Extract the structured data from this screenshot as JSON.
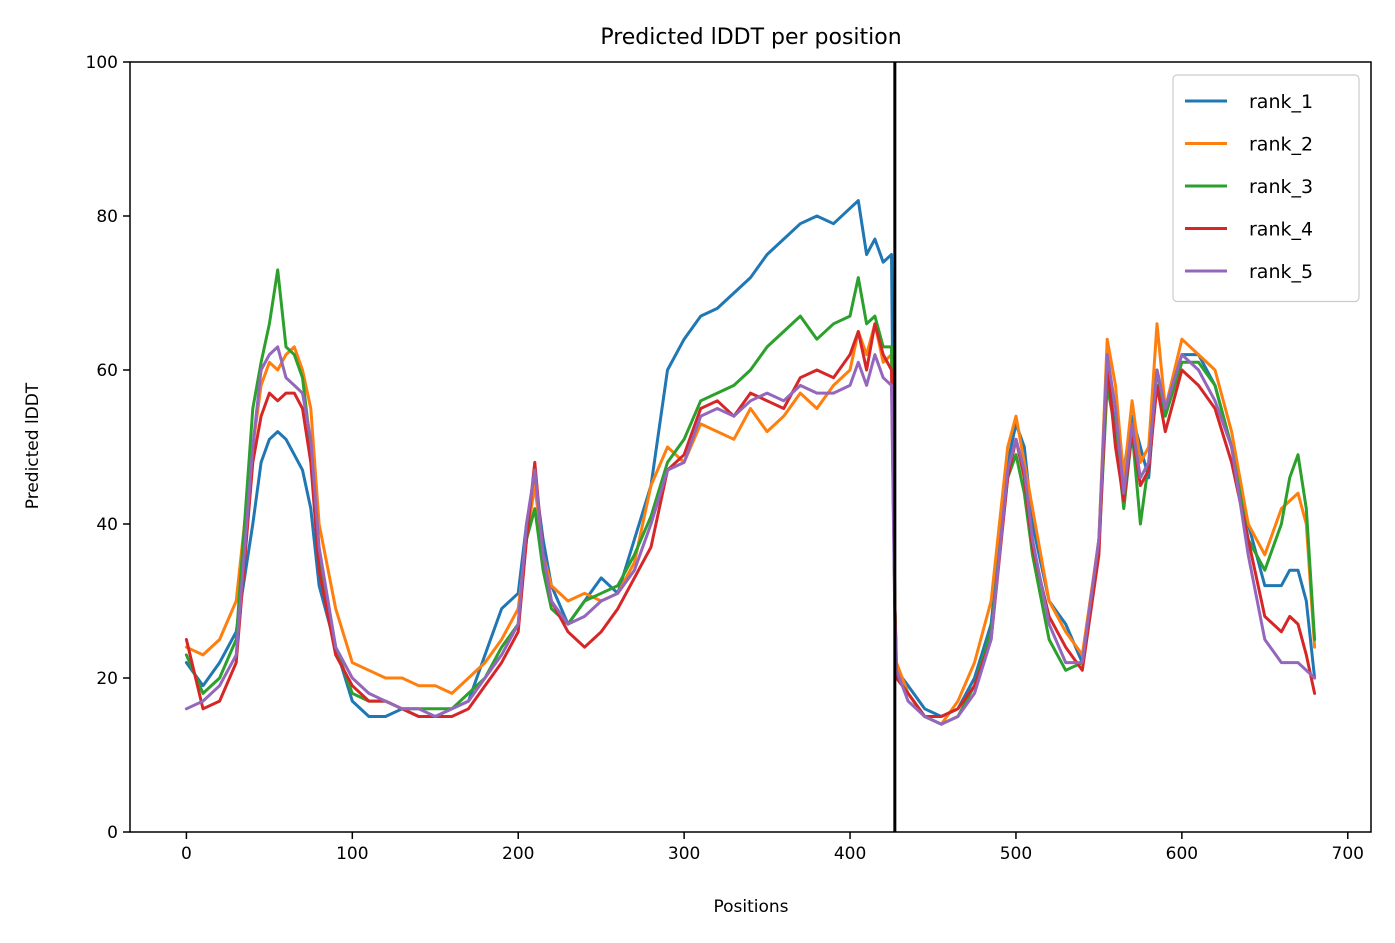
{
  "chart_data": {
    "type": "line",
    "title": "Predicted lDDT per position",
    "xlabel": "Positions",
    "ylabel": "Predicted lDDT",
    "xlim": [
      -34,
      714
    ],
    "ylim": [
      0,
      100
    ],
    "xticks": [
      0,
      100,
      200,
      300,
      400,
      500,
      600,
      700
    ],
    "yticks": [
      0,
      20,
      40,
      60,
      80,
      100
    ],
    "xtick_labels": [
      "0",
      "100",
      "200",
      "300",
      "400",
      "500",
      "600",
      "700"
    ],
    "ytick_labels": [
      "0",
      "20",
      "40",
      "60",
      "80",
      "100"
    ],
    "vline_x": 427,
    "grid": false,
    "legend_position": "top-right",
    "x": [
      0,
      10,
      20,
      30,
      40,
      45,
      50,
      55,
      60,
      65,
      70,
      75,
      80,
      90,
      100,
      110,
      120,
      130,
      140,
      150,
      160,
      170,
      180,
      190,
      200,
      205,
      210,
      215,
      220,
      230,
      240,
      250,
      260,
      270,
      280,
      290,
      300,
      310,
      320,
      330,
      340,
      350,
      360,
      370,
      380,
      390,
      400,
      405,
      410,
      415,
      420,
      425,
      427,
      428,
      435,
      445,
      455,
      465,
      475,
      485,
      495,
      500,
      505,
      510,
      520,
      530,
      540,
      550,
      555,
      560,
      565,
      570,
      575,
      580,
      585,
      590,
      600,
      610,
      620,
      630,
      640,
      650,
      660,
      665,
      670,
      675,
      680
    ],
    "series": [
      {
        "name": "rank_1",
        "color": "#1f77b4",
        "values": [
          22,
          19,
          22,
          26,
          40,
          48,
          51,
          52,
          51,
          49,
          47,
          42,
          32,
          24,
          17,
          15,
          15,
          16,
          15,
          15,
          16,
          17,
          23,
          29,
          31,
          40,
          46,
          38,
          32,
          27,
          30,
          33,
          31,
          38,
          45,
          60,
          64,
          67,
          68,
          70,
          72,
          75,
          77,
          79,
          80,
          79,
          81,
          82,
          75,
          77,
          74,
          75,
          30,
          21,
          19,
          16,
          15,
          16,
          20,
          27,
          48,
          53,
          50,
          40,
          30,
          27,
          22,
          38,
          60,
          52,
          47,
          54,
          50,
          46,
          60,
          55,
          62,
          62,
          58,
          50,
          40,
          32,
          32,
          34,
          34,
          30,
          20
        ]
      },
      {
        "name": "rank_2",
        "color": "#ff7f0e",
        "values": [
          24,
          23,
          25,
          30,
          50,
          58,
          61,
          60,
          62,
          63,
          60,
          55,
          40,
          29,
          22,
          21,
          20,
          20,
          19,
          19,
          18,
          20,
          22,
          25,
          29,
          38,
          45,
          36,
          32,
          30,
          31,
          30,
          31,
          35,
          45,
          50,
          48,
          53,
          52,
          51,
          55,
          52,
          54,
          57,
          55,
          58,
          60,
          65,
          62,
          66,
          61,
          62,
          30,
          22,
          18,
          15,
          14,
          17,
          22,
          30,
          50,
          54,
          48,
          42,
          30,
          26,
          23,
          38,
          64,
          58,
          46,
          56,
          48,
          50,
          66,
          55,
          64,
          62,
          60,
          52,
          40,
          36,
          42,
          43,
          44,
          40,
          24
        ]
      },
      {
        "name": "rank_3",
        "color": "#2ca02c",
        "values": [
          23,
          18,
          20,
          25,
          55,
          61,
          66,
          73,
          63,
          62,
          59,
          50,
          36,
          24,
          18,
          17,
          17,
          16,
          16,
          16,
          16,
          18,
          20,
          24,
          27,
          38,
          42,
          34,
          29,
          27,
          30,
          31,
          32,
          36,
          41,
          48,
          51,
          56,
          57,
          58,
          60,
          63,
          65,
          67,
          64,
          66,
          67,
          72,
          66,
          67,
          63,
          63,
          30,
          20,
          18,
          15,
          14,
          15,
          19,
          26,
          46,
          49,
          44,
          36,
          25,
          21,
          22,
          37,
          58,
          52,
          42,
          52,
          40,
          48,
          60,
          54,
          61,
          61,
          58,
          50,
          38,
          34,
          40,
          46,
          49,
          42,
          25
        ]
      },
      {
        "name": "rank_4",
        "color": "#d62728",
        "values": [
          25,
          16,
          17,
          22,
          48,
          54,
          57,
          56,
          57,
          57,
          55,
          48,
          34,
          23,
          19,
          17,
          17,
          16,
          15,
          15,
          15,
          16,
          19,
          22,
          26,
          38,
          48,
          36,
          30,
          26,
          24,
          26,
          29,
          33,
          37,
          47,
          49,
          55,
          56,
          54,
          57,
          56,
          55,
          59,
          60,
          59,
          62,
          65,
          60,
          66,
          62,
          60,
          30,
          20,
          18,
          15,
          15,
          16,
          19,
          25,
          46,
          51,
          46,
          37,
          28,
          24,
          21,
          36,
          61,
          50,
          43,
          52,
          45,
          47,
          58,
          52,
          60,
          58,
          55,
          48,
          38,
          28,
          26,
          28,
          27,
          23,
          18
        ]
      },
      {
        "name": "rank_5",
        "color": "#9467bd",
        "values": [
          16,
          17,
          19,
          23,
          50,
          60,
          62,
          63,
          59,
          58,
          57,
          51,
          37,
          24,
          20,
          18,
          17,
          16,
          16,
          15,
          16,
          17,
          20,
          23,
          27,
          40,
          47,
          36,
          30,
          27,
          28,
          30,
          31,
          34,
          40,
          47,
          48,
          54,
          55,
          54,
          56,
          57,
          56,
          58,
          57,
          57,
          58,
          61,
          58,
          62,
          59,
          58,
          28,
          21,
          17,
          15,
          14,
          15,
          18,
          25,
          47,
          51,
          47,
          38,
          27,
          22,
          22,
          38,
          62,
          55,
          44,
          53,
          46,
          48,
          60,
          55,
          62,
          60,
          56,
          50,
          36,
          25,
          22,
          22,
          22,
          21,
          20
        ]
      }
    ]
  }
}
